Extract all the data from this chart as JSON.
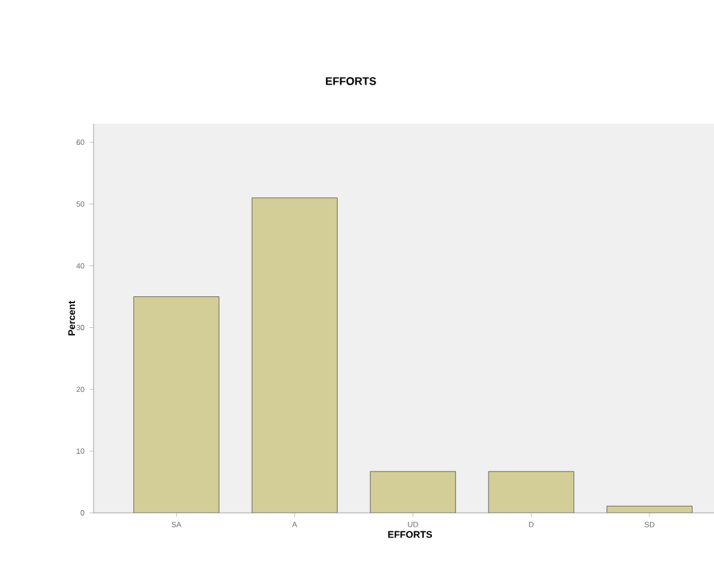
{
  "chart_data": {
    "type": "bar",
    "title": "EFFORTS",
    "xlabel": "EFFORTS",
    "ylabel": "Percent",
    "categories": [
      "SA",
      "A",
      "UD",
      "D",
      "SD"
    ],
    "values": [
      35,
      51,
      6.7,
      6.7,
      1.1
    ],
    "color": "#d3ce98",
    "ylim": [
      0,
      63
    ],
    "yticks": [
      0,
      10,
      20,
      30,
      40,
      50,
      60
    ],
    "grid": false
  }
}
